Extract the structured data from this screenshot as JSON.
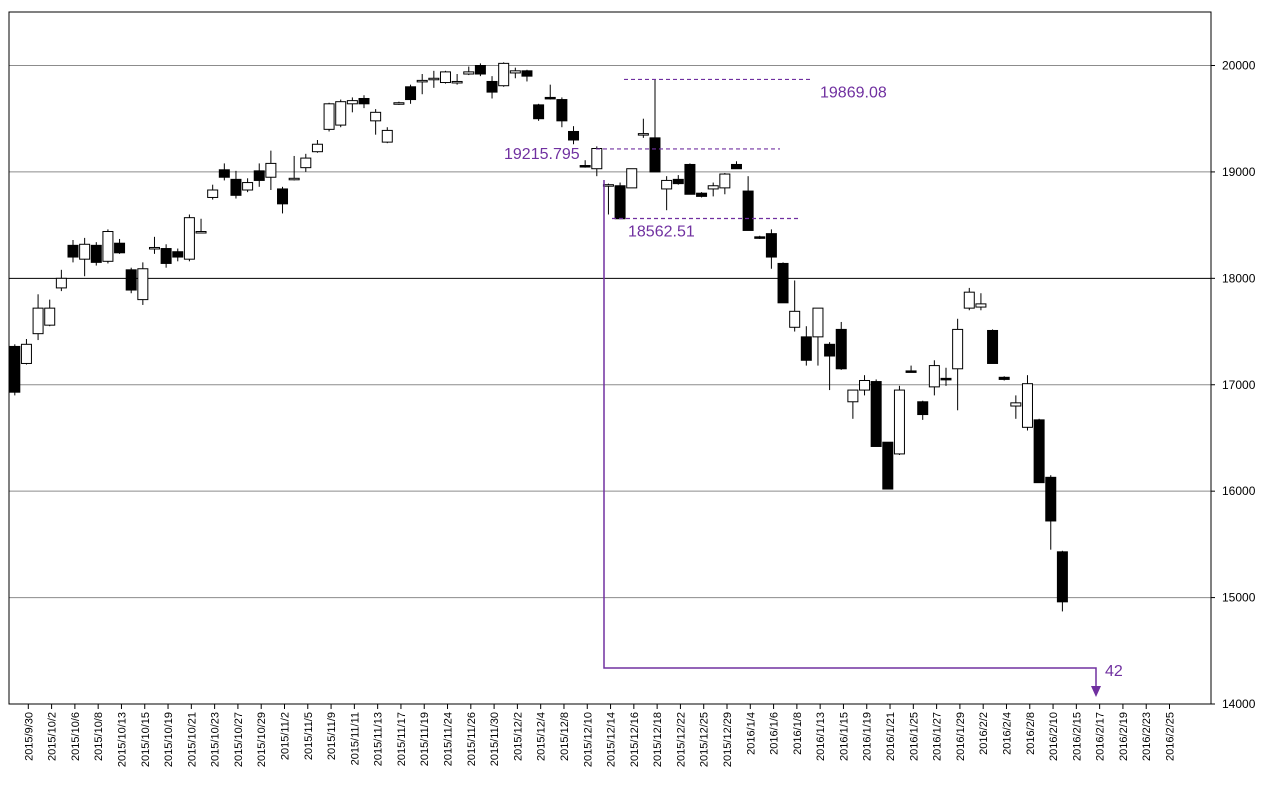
{
  "chart_data": {
    "type": "candlestick",
    "ylim": [
      14000,
      20000
    ],
    "y_ticks": [
      14000,
      15000,
      16000,
      17000,
      18000,
      19000,
      20000
    ],
    "x_tick_labels": [
      "2015/9/30",
      "2015/10/2",
      "2015/10/6",
      "2015/10/8",
      "2015/10/13",
      "2015/10/15",
      "2015/10/19",
      "2015/10/21",
      "2015/10/23",
      "2015/10/27",
      "2015/10/29",
      "2015/11/2",
      "2015/11/5",
      "2015/11/9",
      "2015/11/11",
      "2015/11/13",
      "2015/11/17",
      "2015/11/19",
      "2015/11/24",
      "2015/11/26",
      "2015/11/30",
      "2015/12/2",
      "2015/12/4",
      "2015/12/8",
      "2015/12/10",
      "2015/12/14",
      "2015/12/16",
      "2015/12/18",
      "2015/12/22",
      "2015/12/25",
      "2015/12/29",
      "2016/1/4",
      "2016/1/6",
      "2016/1/8",
      "2016/1/13",
      "2016/1/15",
      "2016/1/19",
      "2016/1/21",
      "2016/1/25",
      "2016/1/27",
      "2016/1/29",
      "2016/2/2",
      "2016/2/4",
      "2016/2/8",
      "2016/2/10",
      "2016/2/15",
      "2016/2/17",
      "2016/2/19",
      "2016/2/23",
      "2016/2/25"
    ],
    "ohlc": [
      {
        "date": "2015/9/30",
        "open": 17360,
        "high": 17380,
        "low": 16900,
        "close": 16930
      },
      {
        "date": "2015/10/1",
        "open": 17200,
        "high": 17430,
        "low": 17190,
        "close": 17380
      },
      {
        "date": "2015/10/2",
        "open": 17480,
        "high": 17850,
        "low": 17420,
        "close": 17720
      },
      {
        "date": "2015/10/5",
        "open": 17560,
        "high": 17800,
        "low": 17550,
        "close": 17720
      },
      {
        "date": "2015/10/6",
        "open": 17910,
        "high": 18080,
        "low": 17880,
        "close": 18000
      },
      {
        "date": "2015/10/7",
        "open": 18310,
        "high": 18360,
        "low": 18150,
        "close": 18200
      },
      {
        "date": "2015/10/8",
        "open": 18180,
        "high": 18380,
        "low": 18020,
        "close": 18320
      },
      {
        "date": "2015/10/9",
        "open": 18310,
        "high": 18340,
        "low": 18120,
        "close": 18150
      },
      {
        "date": "2015/10/13",
        "open": 18160,
        "high": 18460,
        "low": 18140,
        "close": 18440
      },
      {
        "date": "2015/10/14",
        "open": 18330,
        "high": 18370,
        "low": 18230,
        "close": 18240
      },
      {
        "date": "2015/10/15",
        "open": 18080,
        "high": 18100,
        "low": 17860,
        "close": 17890
      },
      {
        "date": "2015/10/16",
        "open": 17800,
        "high": 18150,
        "low": 17750,
        "close": 18090
      },
      {
        "date": "2015/10/19",
        "open": 18290,
        "high": 18390,
        "low": 18230,
        "close": 18290
      },
      {
        "date": "2015/10/20",
        "open": 18280,
        "high": 18320,
        "low": 18100,
        "close": 18140
      },
      {
        "date": "2015/10/21",
        "open": 18250,
        "high": 18280,
        "low": 18160,
        "close": 18200
      },
      {
        "date": "2015/10/22",
        "open": 18180,
        "high": 18600,
        "low": 18160,
        "close": 18570
      },
      {
        "date": "2015/10/23",
        "open": 18440,
        "high": 18560,
        "low": 18430,
        "close": 18440
      },
      {
        "date": "2015/10/26",
        "open": 18760,
        "high": 18880,
        "low": 18740,
        "close": 18830
      },
      {
        "date": "2015/10/27",
        "open": 19020,
        "high": 19080,
        "low": 18920,
        "close": 18950
      },
      {
        "date": "2015/10/28",
        "open": 18930,
        "high": 19010,
        "low": 18750,
        "close": 18780
      },
      {
        "date": "2015/10/29",
        "open": 18830,
        "high": 18940,
        "low": 18810,
        "close": 18900
      },
      {
        "date": "2015/10/30",
        "open": 19010,
        "high": 19080,
        "low": 18860,
        "close": 18920
      },
      {
        "date": "2015/11/2",
        "open": 18950,
        "high": 19200,
        "low": 18830,
        "close": 19080
      },
      {
        "date": "2015/11/4",
        "open": 18840,
        "high": 18860,
        "low": 18610,
        "close": 18700
      },
      {
        "date": "2015/11/5",
        "open": 18930,
        "high": 19150,
        "low": 18920,
        "close": 18940
      },
      {
        "date": "2015/11/6",
        "open": 19040,
        "high": 19170,
        "low": 19000,
        "close": 19130
      },
      {
        "date": "2015/11/9",
        "open": 19190,
        "high": 19300,
        "low": 19180,
        "close": 19260
      },
      {
        "date": "2015/11/10",
        "open": 19400,
        "high": 19650,
        "low": 19380,
        "close": 19640
      },
      {
        "date": "2015/11/11",
        "open": 19440,
        "high": 19680,
        "low": 19420,
        "close": 19660
      },
      {
        "date": "2015/11/12",
        "open": 19640,
        "high": 19700,
        "low": 19560,
        "close": 19670
      },
      {
        "date": "2015/11/13",
        "open": 19690,
        "high": 19720,
        "low": 19600,
        "close": 19640
      },
      {
        "date": "2015/11/16",
        "open": 19480,
        "high": 19590,
        "low": 19350,
        "close": 19560
      },
      {
        "date": "2015/11/17",
        "open": 19280,
        "high": 19420,
        "low": 19270,
        "close": 19390
      },
      {
        "date": "2015/11/18",
        "open": 19640,
        "high": 19660,
        "low": 19630,
        "close": 19650
      },
      {
        "date": "2015/11/19",
        "open": 19800,
        "high": 19820,
        "low": 19640,
        "close": 19680
      },
      {
        "date": "2015/11/20",
        "open": 19850,
        "high": 19920,
        "low": 19730,
        "close": 19860
      },
      {
        "date": "2015/11/24",
        "open": 19870,
        "high": 19950,
        "low": 19790,
        "close": 19880
      },
      {
        "date": "2015/11/25",
        "open": 19840,
        "high": 19950,
        "low": 19830,
        "close": 19940
      },
      {
        "date": "2015/11/26",
        "open": 19850,
        "high": 19920,
        "low": 19820,
        "close": 19850
      },
      {
        "date": "2015/11/27",
        "open": 19920,
        "high": 19990,
        "low": 19910,
        "close": 19940
      },
      {
        "date": "2015/11/30",
        "open": 20000,
        "high": 20020,
        "low": 19900,
        "close": 19920
      },
      {
        "date": "2015/12/1",
        "open": 19850,
        "high": 19900,
        "low": 19690,
        "close": 19750
      },
      {
        "date": "2015/12/2",
        "open": 19810,
        "high": 20030,
        "low": 19800,
        "close": 20020
      },
      {
        "date": "2015/12/3",
        "open": 19930,
        "high": 19980,
        "low": 19880,
        "close": 19950
      },
      {
        "date": "2015/12/4",
        "open": 19950,
        "high": 19960,
        "low": 19850,
        "close": 19900
      },
      {
        "date": "2015/12/7",
        "open": 19630,
        "high": 19640,
        "low": 19480,
        "close": 19500
      },
      {
        "date": "2015/12/8",
        "open": 19700,
        "high": 19820,
        "low": 19680,
        "close": 19690
      },
      {
        "date": "2015/12/9",
        "open": 19680,
        "high": 19700,
        "low": 19420,
        "close": 19480
      },
      {
        "date": "2015/12/10",
        "open": 19380,
        "high": 19430,
        "low": 19260,
        "close": 19300
      },
      {
        "date": "2015/12/11",
        "open": 19060,
        "high": 19110,
        "low": 19040,
        "close": 19050
      },
      {
        "date": "2015/12/14",
        "open": 19030,
        "high": 19240,
        "low": 18960,
        "close": 19220
      },
      {
        "date": "2015/12/15",
        "open": 18880,
        "high": 18890,
        "low": 18600,
        "close": 18880
      },
      {
        "date": "2015/12/16",
        "open": 18870,
        "high": 18900,
        "low": 18560,
        "close": 18560
      },
      {
        "date": "2015/12/17",
        "open": 18850,
        "high": 19010,
        "low": 18850,
        "close": 19030
      },
      {
        "date": "2015/12/18",
        "open": 19360,
        "high": 19500,
        "low": 19320,
        "close": 19360
      },
      {
        "date": "2015/12/21",
        "open": 19320,
        "high": 19869,
        "low": 19000,
        "close": 19000
      },
      {
        "date": "2015/12/22",
        "open": 18840,
        "high": 18960,
        "low": 18640,
        "close": 18920
      },
      {
        "date": "2015/12/24",
        "open": 18930,
        "high": 18970,
        "low": 18880,
        "close": 18890
      },
      {
        "date": "2015/12/25",
        "open": 19070,
        "high": 19080,
        "low": 18790,
        "close": 18790
      },
      {
        "date": "2015/12/28",
        "open": 18800,
        "high": 18810,
        "low": 18760,
        "close": 18770
      },
      {
        "date": "2015/12/29",
        "open": 18840,
        "high": 18900,
        "low": 18770,
        "close": 18870
      },
      {
        "date": "2015/12/30",
        "open": 18850,
        "high": 18990,
        "low": 18790,
        "close": 18980
      },
      {
        "date": "2016/1/4",
        "open": 19070,
        "high": 19100,
        "low": 19030,
        "close": 19030
      },
      {
        "date": "2016/1/5",
        "open": 18820,
        "high": 18960,
        "low": 18460,
        "close": 18450
      },
      {
        "date": "2016/1/6",
        "open": 18390,
        "high": 18400,
        "low": 18370,
        "close": 18380
      },
      {
        "date": "2016/1/7",
        "open": 18420,
        "high": 18460,
        "low": 18090,
        "close": 18200
      },
      {
        "date": "2016/1/8",
        "open": 18140,
        "high": 18150,
        "low": 17770,
        "close": 17770
      },
      {
        "date": "2016/1/12",
        "open": 17540,
        "high": 17980,
        "low": 17500,
        "close": 17690
      },
      {
        "date": "2016/1/13",
        "open": 17450,
        "high": 17550,
        "low": 17180,
        "close": 17230
      },
      {
        "date": "2016/1/14",
        "open": 17450,
        "high": 17720,
        "low": 17180,
        "close": 17720
      },
      {
        "date": "2016/1/15",
        "open": 17380,
        "high": 17400,
        "low": 16950,
        "close": 17270
      },
      {
        "date": "2016/1/18",
        "open": 17520,
        "high": 17590,
        "low": 17140,
        "close": 17150
      },
      {
        "date": "2016/1/19",
        "open": 16840,
        "high": 16940,
        "low": 16680,
        "close": 16950
      },
      {
        "date": "2016/1/20",
        "open": 16950,
        "high": 17090,
        "low": 16900,
        "close": 17040
      },
      {
        "date": "2016/1/21",
        "open": 17030,
        "high": 17050,
        "low": 16420,
        "close": 16420
      },
      {
        "date": "2016/1/22",
        "open": 16460,
        "high": 16460,
        "low": 16020,
        "close": 16020
      },
      {
        "date": "2016/1/25",
        "open": 16350,
        "high": 16990,
        "low": 16340,
        "close": 16950
      },
      {
        "date": "2016/1/26",
        "open": 17130,
        "high": 17180,
        "low": 17120,
        "close": 17120
      },
      {
        "date": "2016/1/27",
        "open": 16840,
        "high": 16850,
        "low": 16670,
        "close": 16720
      },
      {
        "date": "2016/1/28",
        "open": 16980,
        "high": 17230,
        "low": 16900,
        "close": 17180
      },
      {
        "date": "2016/1/29",
        "open": 17060,
        "high": 17160,
        "low": 16990,
        "close": 17050
      },
      {
        "date": "2016/2/1",
        "open": 17150,
        "high": 17620,
        "low": 16760,
        "close": 17520
      },
      {
        "date": "2016/2/2",
        "open": 17720,
        "high": 17910,
        "low": 17700,
        "close": 17870
      },
      {
        "date": "2016/2/3",
        "open": 17730,
        "high": 17860,
        "low": 17700,
        "close": 17760
      },
      {
        "date": "2016/2/4",
        "open": 17510,
        "high": 17520,
        "low": 17200,
        "close": 17200
      },
      {
        "date": "2016/2/5",
        "open": 17070,
        "high": 17080,
        "low": 17040,
        "close": 17050
      },
      {
        "date": "2016/2/8",
        "open": 16800,
        "high": 16900,
        "low": 16680,
        "close": 16830
      },
      {
        "date": "2016/2/9",
        "open": 16600,
        "high": 17090,
        "low": 16570,
        "close": 17010
      },
      {
        "date": "2016/2/10",
        "open": 16670,
        "high": 16680,
        "low": 16080,
        "close": 16080
      },
      {
        "date": "2016/2/12",
        "open": 16130,
        "high": 16150,
        "low": 15450,
        "close": 15720
      },
      {
        "date": "2016/2/15",
        "open": 15430,
        "high": 15440,
        "low": 14870,
        "close": 14960
      }
    ],
    "annotations": {
      "levels": [
        {
          "label": "19869.08",
          "value": 19869.08
        },
        {
          "label": "19215.795",
          "value": 19215.795
        },
        {
          "label": "18562.51",
          "value": 18562.51
        }
      ],
      "count_label": "42"
    },
    "colors": {
      "bull_fill": "#ffffff",
      "bear_fill": "#000000",
      "annotation": "#7030a0"
    },
    "grid": true
  }
}
